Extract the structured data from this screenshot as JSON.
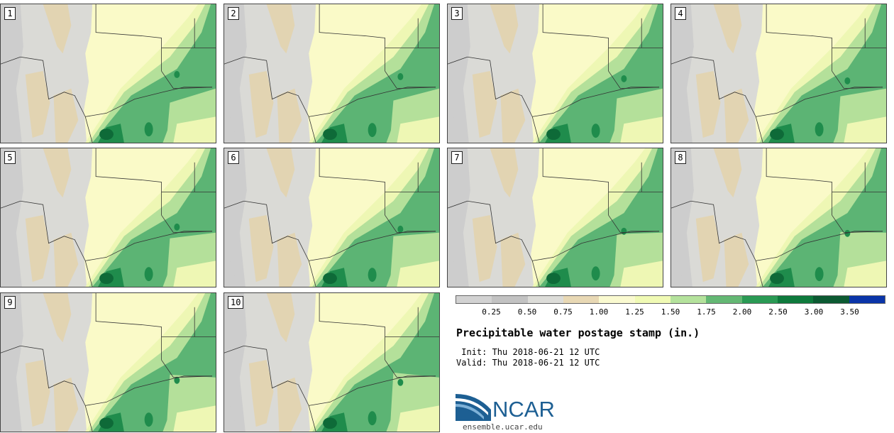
{
  "title": "Precipitable water postage stamp (in.)",
  "init_label": " Init: Thu 2018-06-21 12 UTC",
  "valid_label": "Valid: Thu 2018-06-21 12 UTC",
  "logo_text": "NCAR",
  "logo_url": "ensemble.ucar.edu",
  "members": [
    "1",
    "2",
    "3",
    "4",
    "5",
    "6",
    "7",
    "8",
    "9",
    "10"
  ],
  "colorbar": {
    "colors": [
      "#d2d2d2",
      "#c2c2c2",
      "#dcdcd8",
      "#e8d8b4",
      "#fafad0",
      "#f0fab4",
      "#b4e29c",
      "#64b874",
      "#2a9a54",
      "#0e7a3c",
      "#0c5a32",
      "#0a34a8"
    ],
    "ticks": [
      "0.25",
      "0.50",
      "0.75",
      "1.00",
      "1.25",
      "1.50",
      "1.75",
      "2.00",
      "2.50",
      "3.00",
      "3.50"
    ]
  },
  "map_colors": {
    "grey": "#cdcdcd",
    "light_grey": "#dadad6",
    "tan": "#e2d4b2",
    "pale_yellow": "#fafac8",
    "yellow_green": "#eef7b4",
    "light_green": "#b4e09a",
    "green": "#5cb474",
    "dark_green": "#1f8c4c",
    "darkest_green": "#0e6a38"
  }
}
